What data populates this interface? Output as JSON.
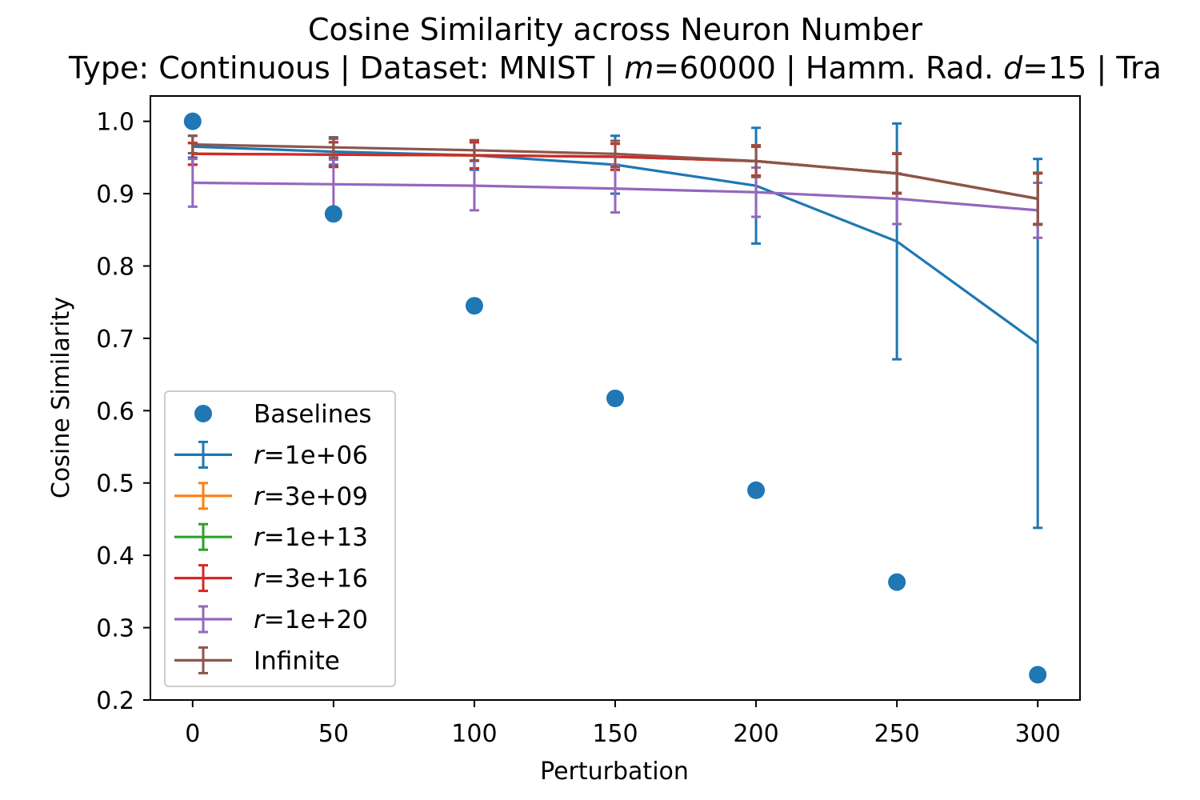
{
  "chart_data": {
    "type": "line",
    "title": "Cosine Similarity across Neuron Number",
    "subtitle_parts": [
      "Type: Continuous | Dataset: MNIST | ",
      "m",
      "=60000 | Hamm. Rad. ",
      "d",
      "=15 | Tra"
    ],
    "xlabel": "Perturbation",
    "ylabel": "Cosine Similarity",
    "x": [
      0,
      50,
      100,
      150,
      200,
      250,
      300
    ],
    "xlim": [
      -15,
      315
    ],
    "ylim": [
      0.2,
      1.035
    ],
    "x_ticks": [
      0,
      50,
      100,
      150,
      200,
      250,
      300
    ],
    "y_ticks": [
      0.2,
      0.3,
      0.4,
      0.5,
      0.6,
      0.7,
      0.8,
      0.9,
      1.0
    ],
    "y_tick_labels": [
      "0.2",
      "0.3",
      "0.4",
      "0.5",
      "0.6",
      "0.7",
      "0.8",
      "0.9",
      "1.0"
    ],
    "grid": false,
    "legend_position": "lower-left",
    "baselines": {
      "name": "Baselines",
      "color": "#1f77b4",
      "values": [
        1.0,
        0.872,
        0.745,
        0.617,
        0.49,
        0.363,
        0.235
      ]
    },
    "series": [
      {
        "name_prefix": "r",
        "name_suffix": "=1e+06",
        "color": "#1f77b4",
        "values": [
          0.965,
          0.958,
          0.953,
          0.94,
          0.911,
          0.834,
          0.693
        ],
        "errors": [
          0.015,
          0.018,
          0.02,
          0.04,
          0.08,
          0.163,
          0.255
        ]
      },
      {
        "name_prefix": "r",
        "name_suffix": "=3e+09",
        "color": "#ff7f0e",
        "values": [
          0.955,
          0.954,
          0.953,
          0.951,
          0.945,
          0.928,
          0.893
        ],
        "errors": [
          0.015,
          0.017,
          0.018,
          0.018,
          0.02,
          0.027,
          0.035
        ]
      },
      {
        "name_prefix": "r",
        "name_suffix": "=1e+13",
        "color": "#2ca02c",
        "values": [
          0.955,
          0.954,
          0.953,
          0.951,
          0.945,
          0.928,
          0.893
        ],
        "errors": [
          0.015,
          0.017,
          0.018,
          0.018,
          0.02,
          0.027,
          0.035
        ]
      },
      {
        "name_prefix": "r",
        "name_suffix": "=3e+16",
        "color": "#d62728",
        "values": [
          0.955,
          0.954,
          0.953,
          0.951,
          0.945,
          0.928,
          0.893
        ],
        "errors": [
          0.015,
          0.017,
          0.018,
          0.018,
          0.02,
          0.027,
          0.035
        ]
      },
      {
        "name_prefix": "r",
        "name_suffix": "=1e+20",
        "color": "#9467bd",
        "values": [
          0.915,
          0.913,
          0.911,
          0.907,
          0.902,
          0.893,
          0.877
        ],
        "errors": [
          0.033,
          0.034,
          0.034,
          0.033,
          0.034,
          0.035,
          0.038
        ]
      },
      {
        "name_prefix": "",
        "name_suffix": "Infinite",
        "color": "#8c564b",
        "values": [
          0.968,
          0.964,
          0.96,
          0.955,
          0.945,
          0.928,
          0.893
        ],
        "errors": [
          0.012,
          0.014,
          0.014,
          0.018,
          0.022,
          0.028,
          0.036
        ]
      }
    ]
  }
}
